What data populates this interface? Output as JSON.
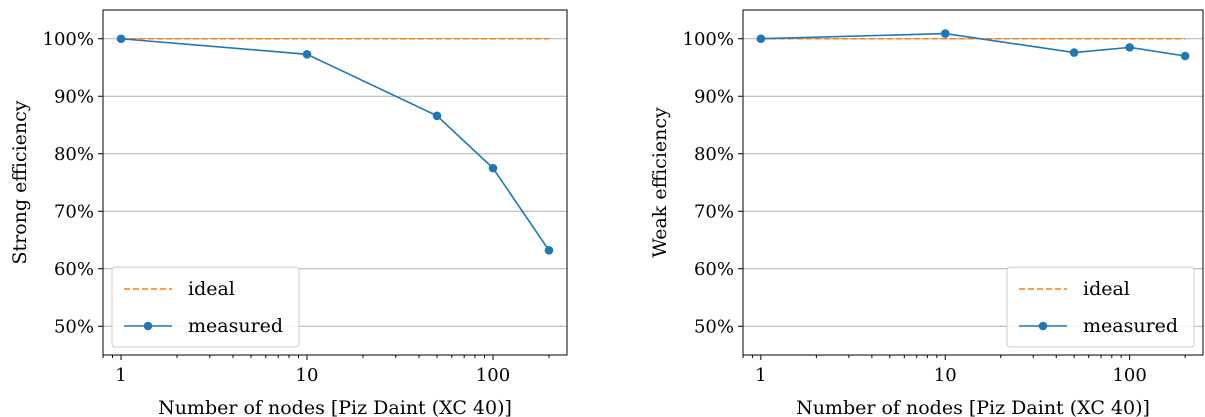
{
  "chart_data": [
    {
      "type": "line",
      "xlabel": "Number of nodes [Piz Daint (XC 40)]",
      "ylabel": "Strong efficiency",
      "xscale": "log",
      "xlim": [
        0.8,
        250
      ],
      "ylim": [
        45,
        105
      ],
      "xticks": [
        1,
        10,
        100
      ],
      "xtick_labels": [
        "1",
        "10",
        "100"
      ],
      "yticks": [
        50,
        60,
        70,
        80,
        90,
        100
      ],
      "ytick_labels": [
        "50%",
        "60%",
        "70%",
        "80%",
        "90%",
        "100%"
      ],
      "grid": "y",
      "legend": "lower-left",
      "series": [
        {
          "name": "ideal",
          "style": "dashed",
          "color": "#ff7f0e",
          "x": [
            1,
            200
          ],
          "values": [
            100,
            100
          ]
        },
        {
          "name": "measured",
          "style": "solid-marker",
          "color": "#1f77b4",
          "x": [
            1,
            10,
            50,
            100,
            200
          ],
          "values": [
            100,
            97.3,
            86.6,
            77.5,
            63.2
          ]
        }
      ]
    },
    {
      "type": "line",
      "xlabel": "Number of nodes [Piz Daint (XC 40)]",
      "ylabel": "Weak efficiency",
      "xscale": "log",
      "xlim": [
        0.8,
        250
      ],
      "ylim": [
        45,
        105
      ],
      "xticks": [
        1,
        10,
        100
      ],
      "xtick_labels": [
        "1",
        "10",
        "100"
      ],
      "yticks": [
        50,
        60,
        70,
        80,
        90,
        100
      ],
      "ytick_labels": [
        "50%",
        "60%",
        "70%",
        "80%",
        "90%",
        "100%"
      ],
      "grid": "y",
      "legend": "lower-right",
      "series": [
        {
          "name": "ideal",
          "style": "dashed",
          "color": "#ff7f0e",
          "x": [
            1,
            200
          ],
          "values": [
            100,
            100
          ]
        },
        {
          "name": "measured",
          "style": "solid-marker",
          "color": "#1f77b4",
          "x": [
            1,
            10,
            50,
            100,
            200
          ],
          "values": [
            100,
            100.9,
            97.6,
            98.5,
            97.0
          ]
        }
      ]
    }
  ]
}
